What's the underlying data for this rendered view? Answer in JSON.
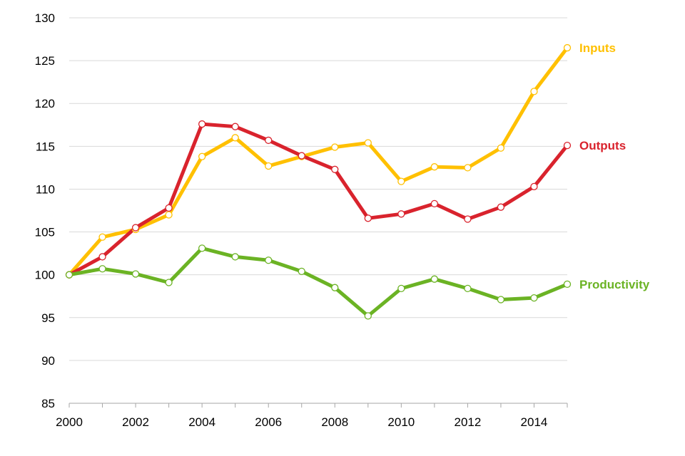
{
  "chart_data": {
    "type": "line",
    "title": "",
    "xlabel": "",
    "ylabel": "",
    "x": [
      2000,
      2001,
      2002,
      2003,
      2004,
      2005,
      2006,
      2007,
      2008,
      2009,
      2010,
      2011,
      2012,
      2013,
      2014,
      2015
    ],
    "xlim": [
      2000,
      2015
    ],
    "ylim": [
      85,
      130
    ],
    "y_ticks": [
      85,
      90,
      95,
      100,
      105,
      110,
      115,
      120,
      125,
      130
    ],
    "x_ticks": [
      2000,
      2002,
      2004,
      2006,
      2008,
      2010,
      2012,
      2014
    ],
    "grid": "horizontal",
    "legend": "inline labels at right end of each line",
    "series": [
      {
        "name": "Inputs",
        "color": "#FFC000",
        "values": [
          100,
          104.4,
          105.3,
          107.0,
          113.8,
          116.0,
          112.7,
          113.8,
          114.9,
          115.4,
          110.9,
          112.6,
          112.5,
          114.8,
          121.4,
          126.5
        ]
      },
      {
        "name": "Outputs",
        "color": "#D9232D",
        "values": [
          100,
          102.1,
          105.5,
          107.8,
          117.6,
          117.3,
          115.7,
          113.9,
          112.3,
          106.6,
          107.1,
          108.3,
          106.5,
          107.9,
          110.3,
          115.1
        ]
      },
      {
        "name": "Productivity",
        "color": "#6BB324",
        "values": [
          100,
          100.7,
          100.1,
          99.1,
          103.1,
          102.1,
          101.7,
          100.4,
          98.5,
          95.2,
          98.4,
          99.5,
          98.4,
          97.1,
          97.3,
          98.9
        ]
      }
    ]
  }
}
